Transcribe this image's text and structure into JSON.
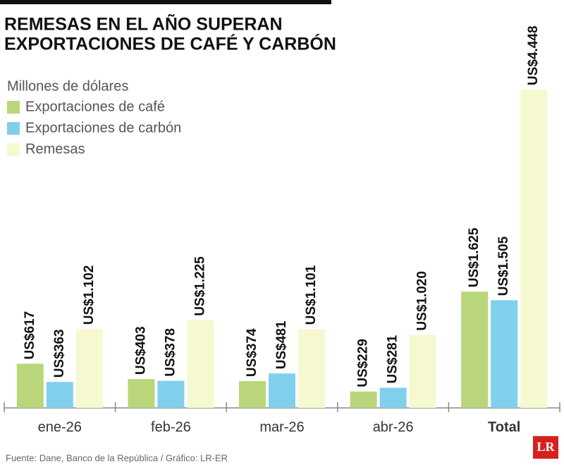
{
  "chart_data": {
    "type": "bar",
    "title_lines": [
      "REMESAS EN EL AÑO SUPERAN",
      "EXPORTACIONES DE CAFÉ Y CARBÓN"
    ],
    "subtitle": "Millones de dólares",
    "categories": [
      "ene-26",
      "feb-26",
      "mar-26",
      "abr-26",
      "Total"
    ],
    "series": [
      {
        "name": "Exportaciones de café",
        "color": "#b9d67a",
        "values": [
          617,
          403,
          374,
          229,
          1625
        ],
        "value_labels": [
          "US$617",
          "US$403",
          "US$374",
          "US$229",
          "US$1.625"
        ]
      },
      {
        "name": "Exportaciones de carbón",
        "color": "#80d0ec",
        "values": [
          363,
          378,
          481,
          281,
          1505
        ],
        "value_labels": [
          "US$363",
          "US$378",
          "US$481",
          "US$281",
          "US$1.505"
        ]
      },
      {
        "name": "Remesas",
        "color": "#f6f8d0",
        "values": [
          1102,
          1225,
          1101,
          1020,
          4448
        ],
        "value_labels": [
          "US$1.102",
          "US$1.225",
          "US$1.101",
          "US$1.020",
          "US$4.448"
        ]
      }
    ],
    "source": "Fuente: Dane, Banco de la República / Gráfico: LR-ER",
    "logo": "LR"
  }
}
